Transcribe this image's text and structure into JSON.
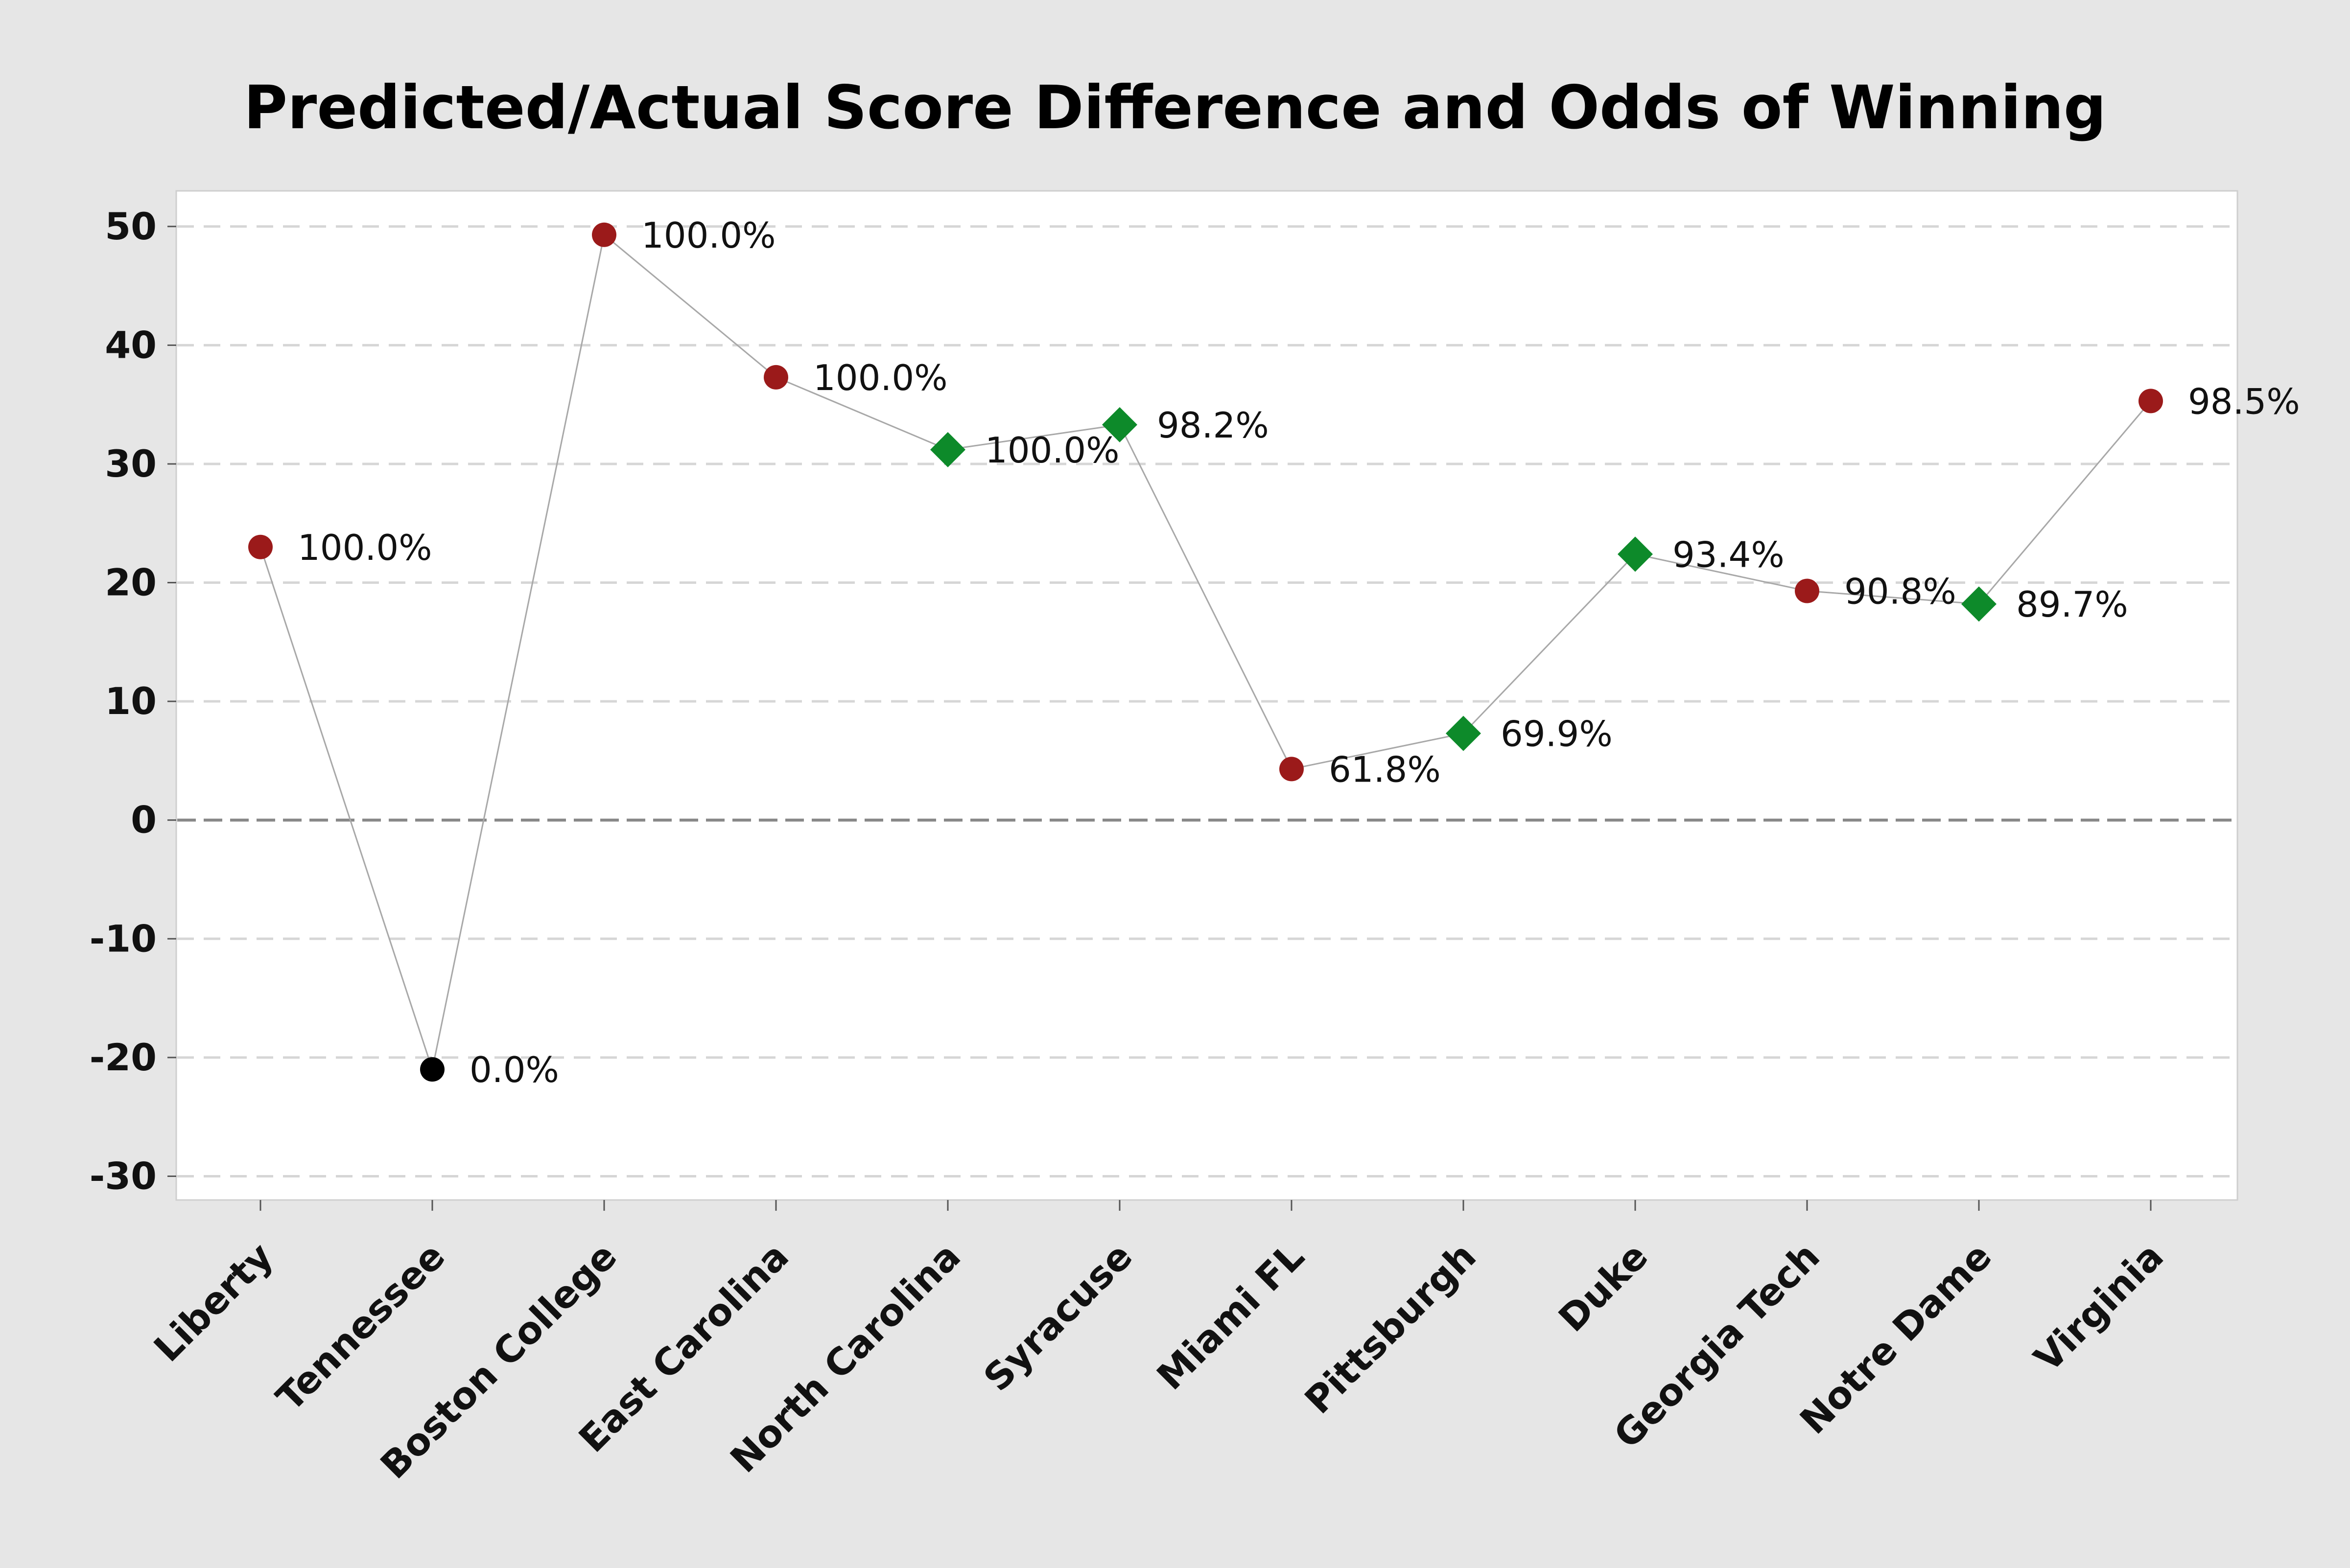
{
  "chart_data": {
    "type": "line",
    "title": "Predicted/Actual Score Difference and Odds of Winning",
    "xlabel": "",
    "ylabel": "",
    "ylim": [
      -32,
      53
    ],
    "yticks": [
      50,
      40,
      30,
      20,
      10,
      0,
      -10,
      -20,
      -30
    ],
    "grid": true,
    "categories": [
      "Liberty",
      "Tennessee",
      "Boston College",
      "East Carolina",
      "North Carolina",
      "Syracuse",
      "Miami FL",
      "Pittsburgh",
      "Duke",
      "Georgia Tech",
      "Notre Dame",
      "Virginia"
    ],
    "series": [
      {
        "values": [
          23,
          -21,
          49.3,
          37.3,
          31.2,
          33.3,
          4.3,
          7.3,
          22.4,
          19.3,
          18.2,
          35.3
        ],
        "labels": [
          "100.0%",
          "0.0%",
          "100.0%",
          "100.0%",
          "100.0%",
          "98.2%",
          "61.8%",
          "69.9%",
          "93.4%",
          "90.8%",
          "89.7%",
          "98.5%"
        ],
        "markers": [
          "circle",
          "circle",
          "circle",
          "circle",
          "diamond",
          "diamond",
          "circle",
          "diamond",
          "diamond",
          "circle",
          "diamond",
          "circle"
        ],
        "point_colors": [
          "#9b1a1a",
          "#000000",
          "#9b1a1a",
          "#9b1a1a",
          "#0d8a2a",
          "#0d8a2a",
          "#9b1a1a",
          "#0d8a2a",
          "#0d8a2a",
          "#9b1a1a",
          "#0d8a2a",
          "#9b1a1a"
        ]
      }
    ],
    "colors": {
      "line": "#a8a8a8",
      "grid": "#d6d6d6",
      "zero_line": "#888888",
      "plot_bg": "#ffffff",
      "page_bg": "#e6e6e6"
    }
  }
}
